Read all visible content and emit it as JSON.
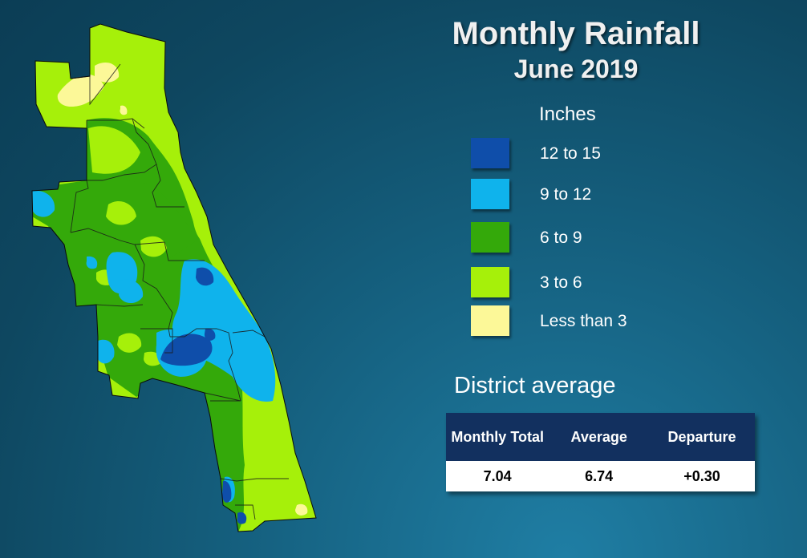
{
  "title": "Monthly Rainfall",
  "subtitle": "June 2019",
  "legend": {
    "heading": "Inches",
    "items": [
      {
        "label": "12 to 15",
        "color": "#0f4eaa"
      },
      {
        "label": "9 to 12",
        "color": "#0fb3ec"
      },
      {
        "label": "6 to 9",
        "color": "#34a90a"
      },
      {
        "label": "3 to 6",
        "color": "#a6f00a"
      },
      {
        "label": "Less than 3",
        "color": "#fcf898"
      }
    ]
  },
  "district": {
    "heading": "District average",
    "columns": [
      "Monthly Total",
      "Average",
      "Departure"
    ],
    "values": [
      "7.04",
      "6.74",
      "+0.30"
    ]
  }
}
